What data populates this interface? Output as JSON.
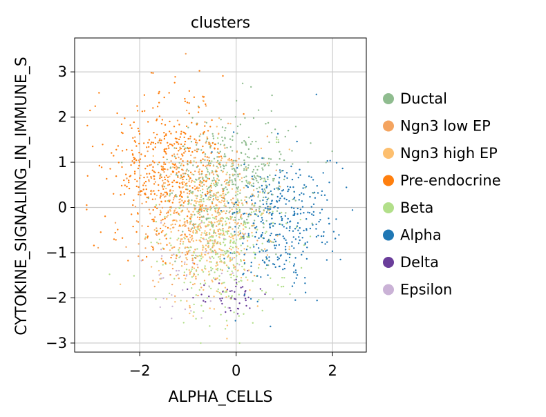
{
  "chart_data": {
    "type": "scatter",
    "title": "clusters",
    "xlabel": "ALPHA_CELLS",
    "ylabel": "CYTOKINE_SIGNALING_IN_IMMUNE_S",
    "xlim": [
      -3.35,
      2.7
    ],
    "ylim": [
      -3.2,
      3.75
    ],
    "xticks": [
      -2,
      0,
      2
    ],
    "xtick_labels": [
      "−2",
      "0",
      "2"
    ],
    "yticks": [
      -3,
      -2,
      -1,
      0,
      1,
      2,
      3
    ],
    "ytick_labels": [
      "−3",
      "−2",
      "−1",
      "0",
      "1",
      "2",
      "3"
    ],
    "grid": true,
    "legend_position": "right, outside plot",
    "series": [
      {
        "name": "Ductal",
        "color": "#8fbc8f",
        "center": [
          -0.1,
          0.7
        ],
        "spread": [
          0.65,
          0.7
        ],
        "n": 420
      },
      {
        "name": "Ngn3 low EP",
        "color": "#f4a460",
        "center": [
          -0.9,
          -0.1
        ],
        "spread": [
          0.6,
          0.9
        ],
        "n": 320
      },
      {
        "name": "Ngn3 high EP",
        "color": "#fdbf6f",
        "center": [
          -0.5,
          -0.3
        ],
        "spread": [
          0.55,
          0.85
        ],
        "n": 420
      },
      {
        "name": "Pre-endocrine",
        "color": "#ff7f0e",
        "center": [
          -1.4,
          0.8
        ],
        "spread": [
          0.6,
          0.85
        ],
        "n": 460
      },
      {
        "name": "Beta",
        "color": "#b2df8a",
        "center": [
          -0.3,
          -0.7
        ],
        "spread": [
          0.6,
          0.8
        ],
        "n": 380
      },
      {
        "name": "Alpha",
        "color": "#1f77b4",
        "center": [
          0.9,
          -0.3
        ],
        "spread": [
          0.55,
          0.75
        ],
        "n": 360
      },
      {
        "name": "Delta",
        "color": "#6a3d9a",
        "center": [
          -0.2,
          -2.0
        ],
        "spread": [
          0.35,
          0.2
        ],
        "n": 45
      },
      {
        "name": "Epsilon",
        "color": "#cab2d6",
        "center": [
          -0.9,
          -1.4
        ],
        "spread": [
          0.5,
          0.6
        ],
        "n": 45
      }
    ]
  }
}
